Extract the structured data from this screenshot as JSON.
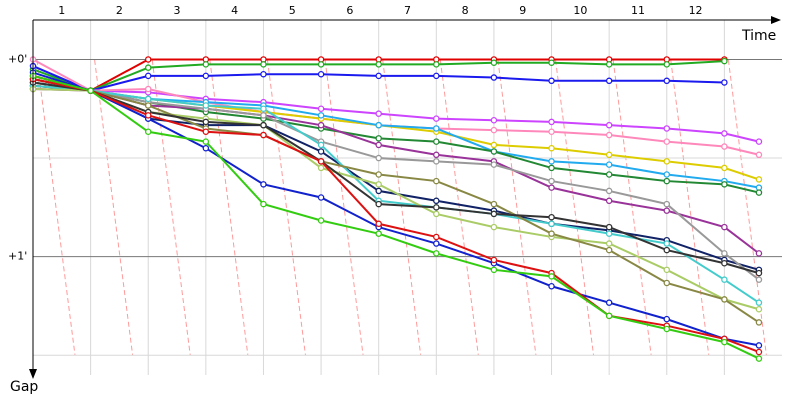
{
  "chart_data": {
    "type": "line",
    "xlabel": "Time",
    "ylabel": "Gap",
    "x": [
      0,
      1,
      2,
      3,
      4,
      5,
      6,
      7,
      8,
      9,
      10,
      11,
      12,
      12.6
    ],
    "xlim": [
      0,
      13
    ],
    "xticks": [
      {
        "value": 0.5,
        "label": "1"
      },
      {
        "value": 1.5,
        "label": "2"
      },
      {
        "value": 2.5,
        "label": "3"
      },
      {
        "value": 3.5,
        "label": "4"
      },
      {
        "value": 4.5,
        "label": "5"
      },
      {
        "value": 5.5,
        "label": "6"
      },
      {
        "value": 6.5,
        "label": "7"
      },
      {
        "value": 7.5,
        "label": "8"
      },
      {
        "value": 8.5,
        "label": "9"
      },
      {
        "value": 9.5,
        "label": "10"
      },
      {
        "value": 10.5,
        "label": "11"
      },
      {
        "value": 11.5,
        "label": "12"
      }
    ],
    "xgrid": [
      0,
      1,
      2,
      3,
      4,
      5,
      6,
      7,
      8,
      9,
      10,
      11,
      12
    ],
    "ylim": [
      -12,
      96
    ],
    "yticks": [
      {
        "value": 0,
        "label": "+0'"
      },
      {
        "value": 60,
        "label": "+1'"
      }
    ],
    "ygrid_minor": [
      30,
      90
    ],
    "inverted_y": true,
    "series": [
      {
        "color": "#e00000",
        "values": [
          5,
          9.5,
          0,
          0,
          0,
          0,
          0,
          0,
          0,
          0,
          0,
          0,
          0,
          null
        ]
      },
      {
        "color": "#22aa22",
        "values": [
          3,
          9.5,
          2.5,
          1.5,
          1.5,
          1.5,
          1.5,
          1.5,
          1,
          1,
          1.5,
          1.5,
          0.5,
          null
        ]
      },
      {
        "color": "#1a1aee",
        "values": [
          2,
          9.5,
          5,
          5,
          4.5,
          4.5,
          5,
          5,
          5.5,
          6.5,
          6.5,
          6.5,
          7,
          null
        ]
      },
      {
        "color": "#cc44ff",
        "values": [
          6,
          9.5,
          10,
          12,
          13,
          15,
          16.5,
          18,
          18.5,
          19,
          20,
          21,
          22.5,
          25
        ]
      },
      {
        "color": "#ff88bb",
        "values": [
          0,
          9.5,
          9,
          13,
          16,
          18,
          20,
          21,
          21.5,
          22,
          23,
          25,
          26.5,
          29
        ]
      },
      {
        "color": "#ddcc00",
        "values": [
          8,
          9.5,
          12,
          14,
          16,
          18,
          20,
          22,
          26,
          27,
          29,
          31,
          33,
          36.5
        ]
      },
      {
        "color": "#22aaee",
        "values": [
          7,
          9.5,
          12,
          13,
          14,
          17,
          20,
          21,
          28,
          31,
          32,
          35,
          37,
          39
        ]
      },
      {
        "color": "#228833",
        "values": [
          6,
          9.5,
          13,
          16,
          18,
          21,
          24,
          25,
          28,
          33,
          35,
          37,
          38,
          40.5
        ]
      },
      {
        "color": "#993399",
        "values": [
          9,
          9.5,
          14,
          15,
          17,
          20,
          26,
          29,
          31,
          39,
          43,
          46,
          51,
          59
        ]
      },
      {
        "color": "#112266",
        "values": [
          8,
          9.5,
          18,
          20,
          20,
          28,
          40,
          43,
          46,
          50,
          52,
          55,
          61,
          64
        ]
      },
      {
        "color": "#999999",
        "values": [
          7,
          9.5,
          13,
          15,
          17,
          25,
          30,
          31,
          32,
          37,
          40,
          44,
          59,
          67
        ]
      },
      {
        "color": "#44cccc",
        "values": [
          8,
          9.5,
          12,
          14,
          15,
          26,
          43,
          45,
          47,
          50,
          53,
          56,
          67,
          74
        ]
      },
      {
        "color": "#aacc66",
        "values": [
          9,
          9.5,
          16,
          18,
          20,
          33,
          38,
          47,
          51,
          54,
          56,
          64,
          73,
          76
        ]
      },
      {
        "color": "#888844",
        "values": [
          7,
          9.5,
          14,
          21,
          23,
          31,
          35,
          37,
          44,
          53,
          58,
          68,
          73,
          80
        ]
      },
      {
        "color": "#333333",
        "values": [
          7,
          9.5,
          16,
          19,
          20,
          31,
          44,
          45,
          47,
          48,
          51,
          58,
          62,
          65
        ]
      },
      {
        "color": "#1122cc",
        "values": [
          4,
          9.5,
          18,
          27,
          38,
          42,
          51,
          56,
          62,
          69,
          74,
          79,
          85,
          87
        ]
      },
      {
        "color": "#dd1111",
        "values": [
          6,
          9.5,
          17,
          22,
          23,
          31,
          50,
          54,
          61,
          65,
          78,
          81,
          85,
          89
        ]
      },
      {
        "color": "#33cc11",
        "values": [
          5,
          9.5,
          22,
          25,
          44,
          49,
          53,
          59,
          64,
          66,
          78,
          82,
          86,
          91
        ]
      }
    ]
  }
}
